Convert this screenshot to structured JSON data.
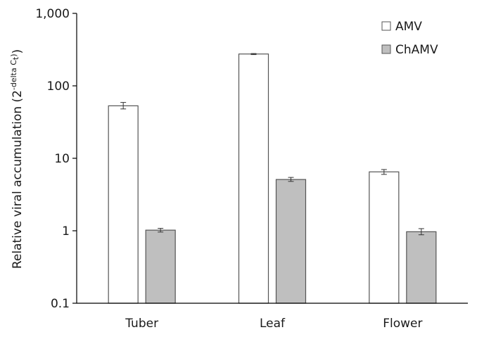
{
  "chart_data": {
    "type": "bar",
    "title": "",
    "xlabel": "",
    "ylabel": {
      "main": "Relative viral accumulation (2",
      "superscript_prefix": "-delta C",
      "superscript_sub": "t",
      "superscript_suffix": ")",
      "close": ")"
    },
    "scale": "log",
    "ylim": [
      0.1,
      1000
    ],
    "yticks": [
      {
        "value": 0.1,
        "label": "0.1"
      },
      {
        "value": 1,
        "label": "1"
      },
      {
        "value": 10,
        "label": "10"
      },
      {
        "value": 100,
        "label": "100"
      },
      {
        "value": 1000,
        "label": "1,000"
      }
    ],
    "categories": [
      "Tuber",
      "Leaf",
      "Flower"
    ],
    "series": [
      {
        "name": "AMV",
        "color": "#ffffff",
        "values": [
          53,
          275,
          6.5
        ],
        "err_low": [
          48,
          270,
          6.0
        ],
        "err_high": [
          59,
          279,
          7.0
        ]
      },
      {
        "name": "ChAMV",
        "color": "#bfbfbf",
        "values": [
          1.02,
          5.1,
          0.97
        ],
        "err_low": [
          0.96,
          4.8,
          0.88
        ],
        "err_high": [
          1.08,
          5.45,
          1.07
        ]
      }
    ],
    "grid": false,
    "legend_position": "top-right"
  }
}
